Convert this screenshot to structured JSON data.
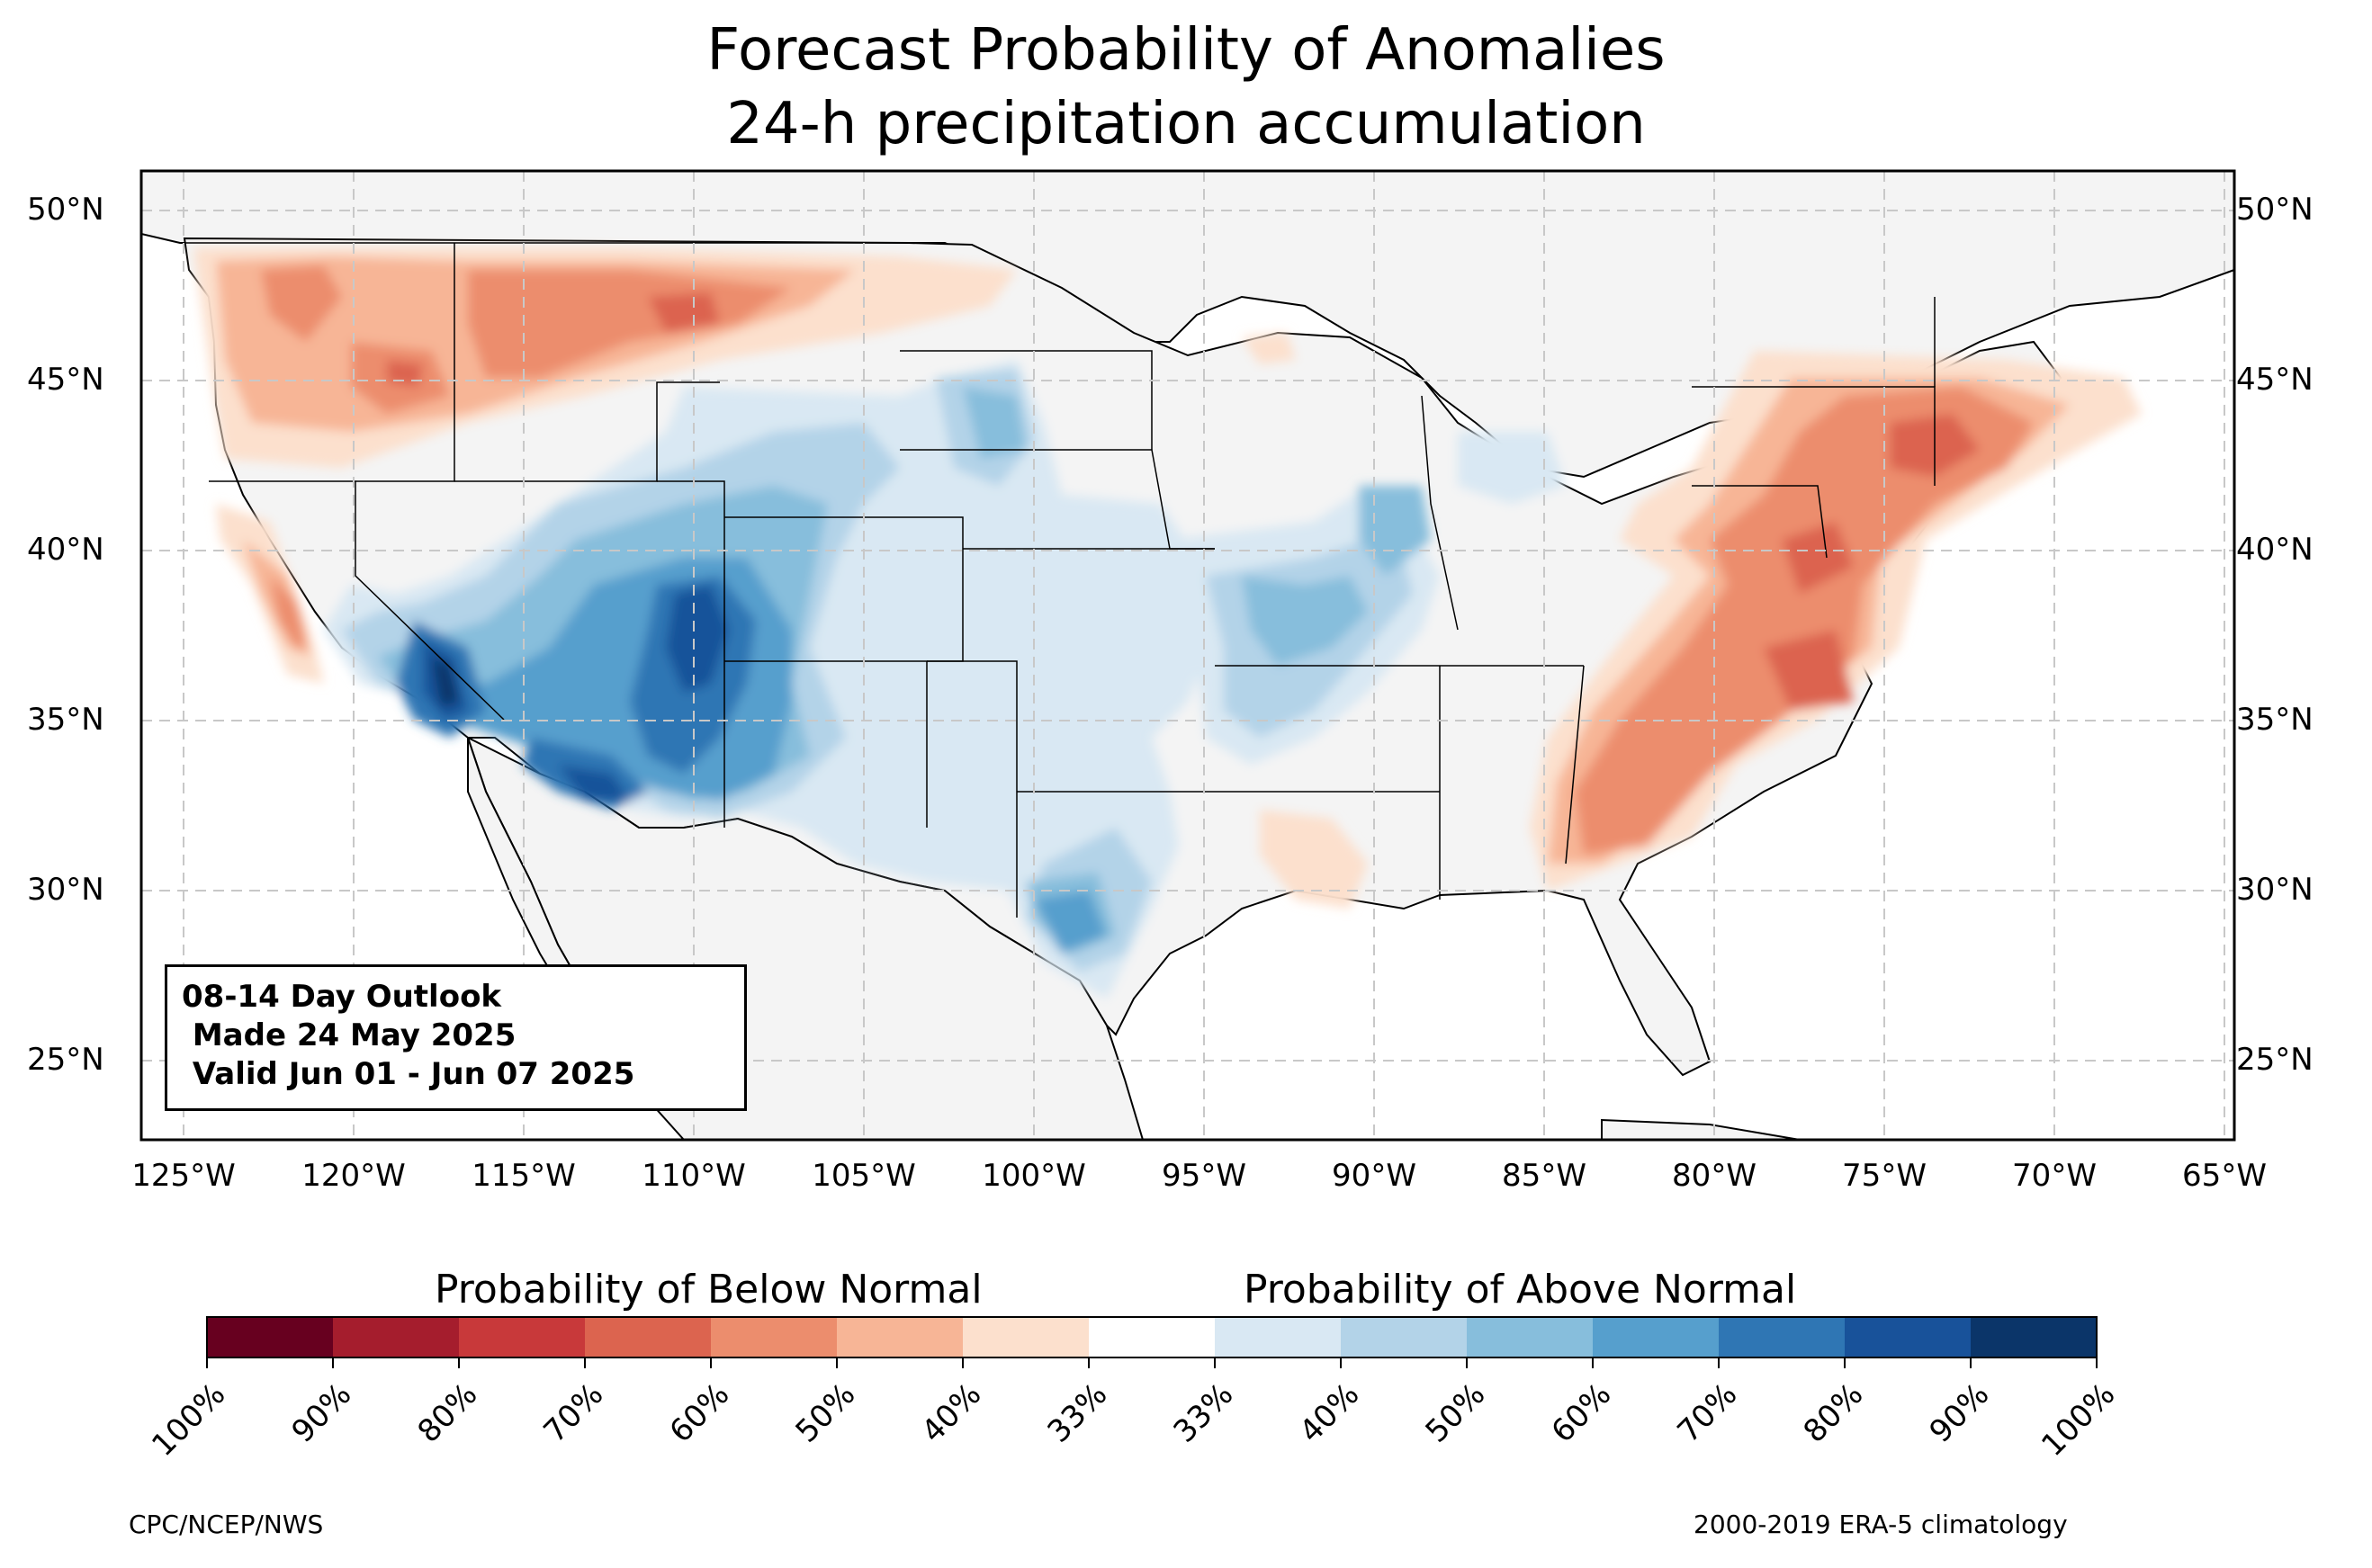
{
  "title": {
    "line1": "Forecast Probability of Anomalies",
    "line2": "24-h precipitation accumulation"
  },
  "outlook": {
    "line1": "08-14 Day Outlook",
    "line2": " Made 24 May 2025",
    "line3": " Valid Jun 01 - Jun 07 2025"
  },
  "axes": {
    "lat_labels": [
      "50°N",
      "45°N",
      "40°N",
      "35°N",
      "30°N",
      "25°N"
    ],
    "lon_labels": [
      "125°W",
      "120°W",
      "115°W",
      "110°W",
      "105°W",
      "100°W",
      "95°W",
      "90°W",
      "85°W",
      "80°W",
      "75°W",
      "70°W",
      "65°W"
    ]
  },
  "colorbar": {
    "below_label": "Probability of Below Normal",
    "above_label": "Probability of Above Normal",
    "ticks": [
      "100%",
      "90%",
      "80%",
      "70%",
      "60%",
      "50%",
      "40%",
      "33%",
      "33%",
      "40%",
      "50%",
      "60%",
      "70%",
      "80%",
      "90%",
      "100%"
    ],
    "colors": [
      "#67001f",
      "#a51d2d",
      "#c8393a",
      "#dc644f",
      "#ec8d6d",
      "#f7b596",
      "#fce0cd",
      "#ffffff",
      "#d9e8f3",
      "#b3d3e8",
      "#87bedc",
      "#569fcd",
      "#2f76b4",
      "#18529a",
      "#0b3569"
    ]
  },
  "credits": {
    "left": "CPC/NCEP/NWS",
    "right": "2000-2019 ERA-5 climatology"
  },
  "map_colors": {
    "land": "#f4f4f4",
    "ocean": "#ffffff",
    "grid": "#c8c8c8"
  }
}
